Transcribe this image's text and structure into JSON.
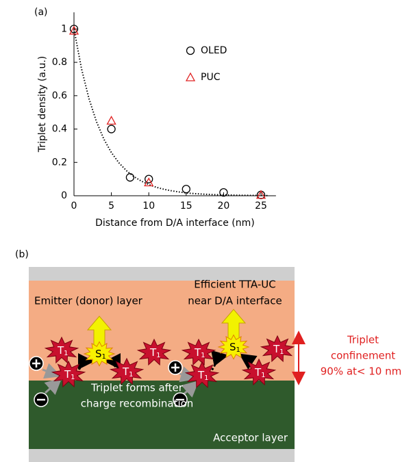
{
  "chart_data": {
    "type": "scatter",
    "panel_label": "(a)",
    "x_label": "Distance from D/A interface (nm)",
    "y_label": "Triplet density (a.u.)",
    "xlim": [
      0,
      27
    ],
    "ylim": [
      0,
      1.1
    ],
    "xticks": [
      0,
      5,
      10,
      15,
      20,
      25
    ],
    "yticks": [
      0,
      0.2,
      0.4,
      0.6,
      0.8,
      1
    ],
    "legend": "upper right",
    "series": [
      {
        "name": "OLED",
        "color": "#000000",
        "marker": "circle",
        "x": [
          0,
          5,
          7.5,
          10,
          15,
          20,
          25
        ],
        "values": [
          1,
          0.4,
          0.11,
          0.1,
          0.04,
          0.02,
          0.005
        ]
      },
      {
        "name": "PUC",
        "color": "#e02020",
        "marker": "triangle",
        "x": [
          0,
          5,
          10,
          25
        ],
        "values": [
          0.99,
          0.45,
          0.08,
          0.005
        ]
      }
    ],
    "curve": {
      "color": "#000000",
      "x": [
        0,
        1,
        2,
        3,
        4,
        5,
        6,
        7,
        8,
        9,
        10,
        11,
        12,
        13,
        14,
        15,
        16,
        18,
        20,
        22,
        24,
        26
      ],
      "values": [
        1,
        0.763,
        0.583,
        0.445,
        0.339,
        0.259,
        0.198,
        0.151,
        0.115,
        0.088,
        0.067,
        0.051,
        0.039,
        0.03,
        0.023,
        0.017,
        0.013,
        0.008,
        0.005,
        0.003,
        0.002,
        0.001
      ]
    }
  },
  "diagram": {
    "panel_label": "(b)",
    "donor_label": "Emitter (donor) layer",
    "ttauc_label": [
      "Efficient TTA-UC",
      "near D/A interface"
    ],
    "formation_label": [
      "Triplet forms after",
      "charge recombination"
    ],
    "acceptor_label": "Acceptor layer",
    "confinement_label": [
      "Triplet",
      "confinement",
      "90%  at< 10 nm"
    ],
    "states": [
      {
        "symbol": "T",
        "index": "1"
      },
      {
        "symbol": "S",
        "index": "1"
      },
      {
        "symbol": "T",
        "index": "1"
      },
      {
        "symbol": "T",
        "index": "1"
      },
      {
        "symbol": "T",
        "index": "1"
      },
      {
        "symbol": "T",
        "index": "1"
      },
      {
        "symbol": "S",
        "index": "1"
      },
      {
        "symbol": "T",
        "index": "1"
      },
      {
        "symbol": "T",
        "index": "1"
      },
      {
        "symbol": "T",
        "index": "1"
      }
    ]
  }
}
